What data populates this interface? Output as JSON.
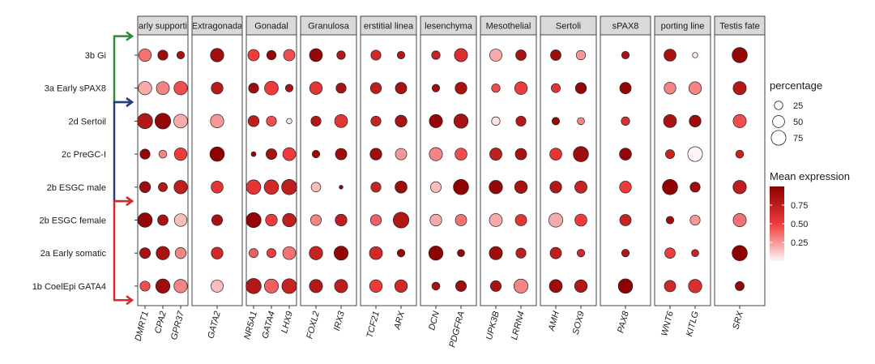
{
  "chart_data": {
    "type": "dotplot",
    "rows": [
      "3b Gi",
      "3a Early sPAX8",
      "2d Sertoil",
      "2c PreGC-I",
      "2b ESGC male",
      "2b ESGC female",
      "2a Early somatic",
      "1b CoelEpi GATA4"
    ],
    "facets": [
      {
        "label": "arly supporti",
        "genes": [
          "DMRT1",
          "CPA2",
          "GPR37"
        ]
      },
      {
        "label": "Extragonada",
        "genes": [
          "GATA2"
        ]
      },
      {
        "label": "Gonadal",
        "genes": [
          "NR5A1",
          "GATA4",
          "LHX9"
        ]
      },
      {
        "label": "Granulosa",
        "genes": [
          "FOXL2",
          "IRX3"
        ]
      },
      {
        "label": "erstitial linea",
        "genes": [
          "TCF21",
          "ARX"
        ]
      },
      {
        "label": "lesenchyma",
        "genes": [
          "DCN",
          "PDGFRA"
        ]
      },
      {
        "label": "Mesothelial",
        "genes": [
          "UPK3B",
          "LRRN4"
        ]
      },
      {
        "label": "Sertoli",
        "genes": [
          "AMH",
          "SOX9"
        ]
      },
      {
        "label": "sPAX8",
        "genes": [
          "PAX8"
        ]
      },
      {
        "label": "porting line",
        "genes": [
          "WNT6",
          "KITLG"
        ]
      },
      {
        "label": "Testis fate",
        "genes": [
          "SRX"
        ]
      }
    ],
    "genes": [
      "DMRT1",
      "CPA2",
      "GPR37",
      "GATA2",
      "NR5A1",
      "GATA4",
      "LHX9",
      "FOXL2",
      "IRX3",
      "TCF21",
      "ARX",
      "DCN",
      "PDGFRA",
      "UPK3B",
      "LRRN4",
      "AMH",
      "SOX9",
      "PAX8",
      "WNT6",
      "KITLG",
      "SRX"
    ],
    "percentage": [
      [
        55,
        35,
        20,
        62,
        45,
        30,
        45,
        58,
        25,
        35,
        20,
        25,
        60,
        52,
        38,
        38,
        30,
        20,
        50,
        10,
        80
      ],
      [
        62,
        58,
        62,
        48,
        35,
        65,
        20,
        55,
        35,
        42,
        45,
        20,
        48,
        25,
        55,
        28,
        42,
        45,
        48,
        55,
        60
      ],
      [
        80,
        85,
        65,
        62,
        42,
        35,
        10,
        35,
        58,
        35,
        48,
        60,
        70,
        25,
        35,
        20,
        18,
        25,
        58,
        48,
        60
      ],
      [
        35,
        22,
        55,
        72,
        8,
        40,
        58,
        20,
        45,
        48,
        45,
        60,
        50,
        52,
        45,
        50,
        80,
        50,
        28,
        75,
        22
      ],
      [
        42,
        28,
        62,
        50,
        72,
        72,
        80,
        32,
        5,
        35,
        50,
        40,
        80,
        62,
        55,
        48,
        52,
        48,
        80,
        35,
        62
      ],
      [
        72,
        38,
        55,
        40,
        78,
        48,
        62,
        40,
        48,
        42,
        85,
        48,
        45,
        58,
        45,
        68,
        50,
        45,
        20,
        35,
        60
      ],
      [
        40,
        62,
        42,
        48,
        28,
        28,
        58,
        62,
        68,
        58,
        20,
        70,
        18,
        60,
        35,
        45,
        20,
        20,
        38,
        18,
        80
      ],
      [
        35,
        70,
        62,
        52,
        80,
        68,
        75,
        60,
        60,
        55,
        55,
        22,
        40,
        40,
        68,
        58,
        55,
        72,
        45,
        62,
        28
      ]
    ],
    "mean_expression": [
      [
        0.35,
        0.9,
        0.85,
        0.88,
        0.5,
        0.95,
        0.45,
        0.95,
        0.8,
        0.65,
        0.8,
        0.7,
        0.6,
        0.2,
        0.85,
        0.9,
        0.25,
        0.85,
        0.85,
        0.05,
        0.95
      ],
      [
        0.2,
        0.3,
        0.45,
        0.78,
        0.9,
        0.5,
        0.85,
        0.55,
        0.85,
        0.75,
        0.85,
        0.9,
        0.85,
        0.45,
        0.5,
        0.55,
        0.95,
        0.95,
        0.3,
        0.3,
        0.8
      ],
      [
        0.8,
        0.95,
        0.2,
        0.25,
        0.75,
        0.45,
        0.05,
        0.8,
        0.55,
        0.7,
        0.85,
        0.95,
        0.85,
        0.05,
        0.8,
        0.95,
        0.3,
        0.6,
        0.85,
        0.9,
        0.45
      ],
      [
        0.95,
        0.3,
        0.5,
        0.98,
        0.95,
        0.85,
        0.5,
        0.95,
        0.9,
        0.9,
        0.25,
        0.3,
        0.45,
        0.75,
        0.85,
        0.55,
        0.9,
        0.95,
        0.7,
        0.0,
        0.7
      ],
      [
        0.9,
        0.8,
        0.75,
        0.55,
        0.55,
        0.65,
        0.75,
        0.15,
        0.95,
        0.7,
        0.9,
        0.15,
        0.98,
        0.95,
        0.85,
        0.8,
        0.7,
        0.5,
        0.98,
        0.9,
        0.75
      ],
      [
        0.95,
        0.85,
        0.15,
        0.85,
        0.95,
        0.5,
        0.75,
        0.3,
        0.75,
        0.4,
        0.8,
        0.2,
        0.35,
        0.2,
        0.55,
        0.2,
        0.5,
        0.7,
        0.9,
        0.25,
        0.35
      ],
      [
        0.85,
        0.85,
        0.3,
        0.65,
        0.4,
        0.5,
        0.35,
        0.7,
        0.95,
        0.65,
        0.95,
        0.98,
        0.95,
        0.9,
        0.75,
        0.75,
        0.65,
        0.8,
        0.5,
        0.7,
        0.98
      ],
      [
        0.45,
        0.9,
        0.3,
        0.15,
        0.8,
        0.4,
        0.7,
        0.8,
        0.75,
        0.5,
        0.65,
        0.85,
        0.9,
        0.85,
        0.3,
        0.9,
        0.8,
        0.98,
        0.65,
        0.6,
        0.95
      ]
    ],
    "row_groups": [
      {
        "rows": [
          "3b Gi",
          "3a Early sPAX8"
        ],
        "color": "#2e8b3a"
      },
      {
        "rows": [
          "2d Sertoil",
          "2c PreGC-I",
          "2b ESGC male"
        ],
        "color": "#2b3a7a"
      },
      {
        "rows": [
          "2b ESGC female",
          "2a Early somatic",
          "1b CoelEpi GATA4"
        ],
        "color": "#d62a2a"
      }
    ],
    "colors": {
      "high": "#8b0000",
      "mid": "#ee3b3b",
      "low": "#fff5f5",
      "panel_border": "#444444",
      "strip_fill": "#d9d9d9"
    },
    "legend": {
      "size_title": "percentage",
      "size_breaks": [
        25,
        50,
        75
      ],
      "size_labels": [
        "25",
        "50",
        "75"
      ],
      "color_title": "Mean expression",
      "color_breaks": [
        0.25,
        0.5,
        0.75
      ],
      "color_labels": [
        "0.25",
        "0.50",
        "0.75"
      ],
      "color_range": [
        0,
        1
      ]
    }
  }
}
